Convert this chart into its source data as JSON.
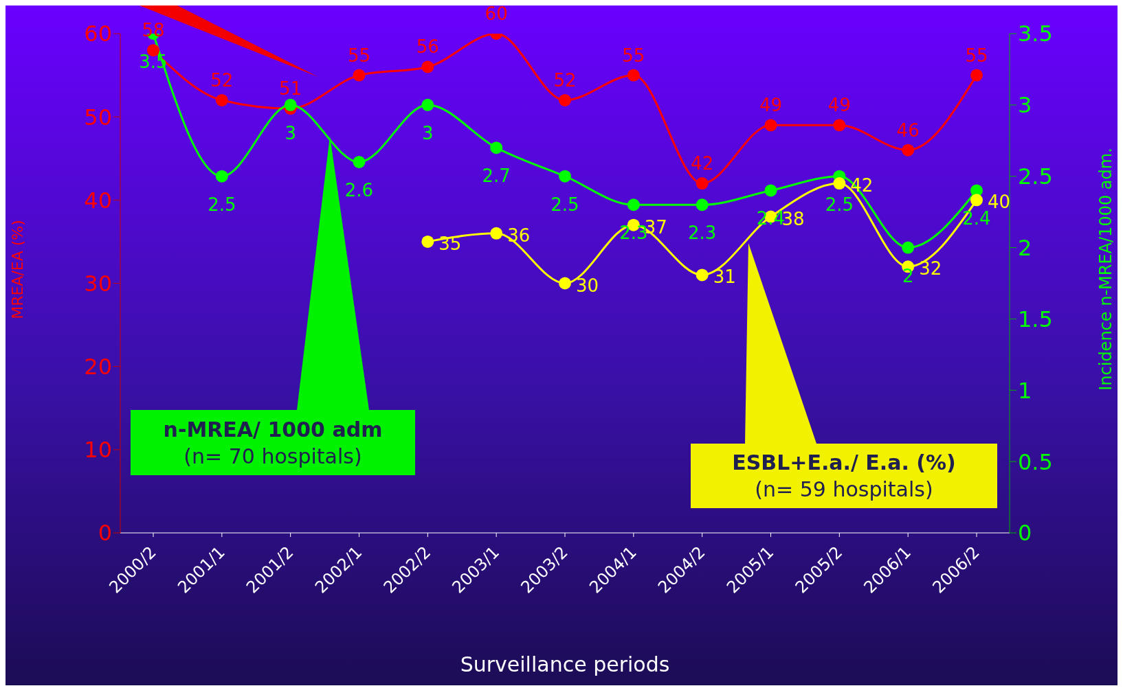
{
  "chart_data": {
    "type": "line",
    "xlabel": "Surveillance periods",
    "ylabel": "MREA/EA (%)",
    "y2label": "Incidence n-MREA/1000 adm.",
    "categories": [
      "2000/2",
      "2001/1",
      "2001/2",
      "2002/1",
      "2002/2",
      "2003/1",
      "2003/2",
      "2004/1",
      "2004/2",
      "2005/1",
      "2005/2",
      "2006/1",
      "2006/2"
    ],
    "series": [
      {
        "color": "#ff0000",
        "values": [
          58,
          52,
          51,
          55,
          56,
          60,
          52,
          55,
          42,
          49,
          49,
          46,
          55
        ]
      },
      {
        "color": "#00ff00",
        "axis": "y2",
        "values": [
          3.5,
          2.5,
          3,
          2.6,
          3,
          2.7,
          2.5,
          2.3,
          2.3,
          2.4,
          2.5,
          2,
          2.4
        ]
      },
      {
        "color": "#ffff00",
        "values": [
          null,
          null,
          null,
          null,
          35,
          36,
          30,
          37,
          31,
          38,
          42,
          32,
          40
        ]
      }
    ],
    "ylim": [
      0,
      60
    ],
    "yticks": [
      0,
      10,
      20,
      30,
      40,
      50,
      60
    ],
    "y2lim": [
      0,
      3.5
    ],
    "y2ticks": [
      0,
      0.5,
      1,
      1.5,
      2,
      2.5,
      3,
      3.5
    ],
    "data_labels": true,
    "marker": "circle",
    "line_style": "solid",
    "annotations": [
      "n-MREA/ 1000 adm\n(n= 70 hospitals)",
      "ESBL+E.a./ E.a. (%)\n(n= 59 hospitals)"
    ]
  }
}
